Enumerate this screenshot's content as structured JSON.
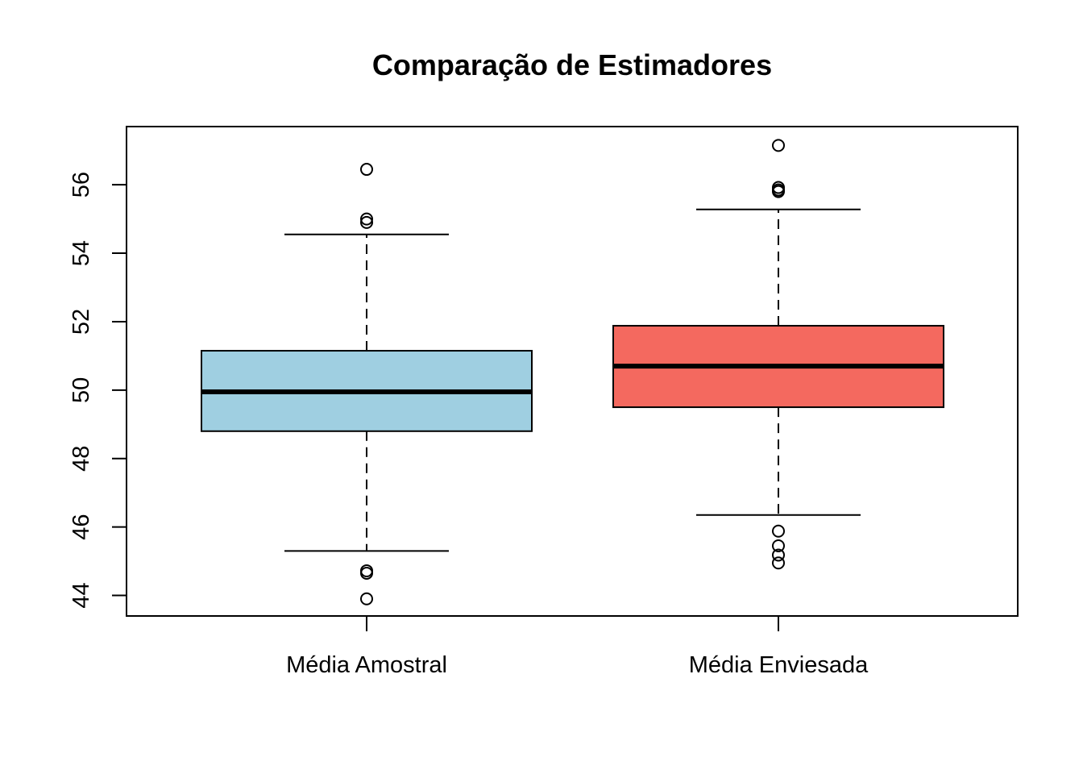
{
  "chart_data": {
    "type": "boxplot",
    "title": "Comparação de Estimadores",
    "xlabel": "",
    "ylabel": "",
    "ylim": [
      43.4,
      57.7
    ],
    "yticks": [
      44,
      46,
      48,
      50,
      52,
      54,
      56
    ],
    "grid": false,
    "series": [
      {
        "category": "Média Amostral",
        "color": "#9FCFE1",
        "whisker_low": 45.3,
        "q1": 48.8,
        "median": 49.95,
        "q3": 51.15,
        "whisker_high": 54.55,
        "outliers": [
          56.45,
          55.0,
          54.9,
          44.72,
          44.65,
          43.9
        ]
      },
      {
        "category": "Média Enviesada",
        "color": "#F4695F",
        "whisker_low": 46.35,
        "q1": 49.5,
        "median": 50.7,
        "q3": 51.88,
        "whisker_high": 55.28,
        "outliers": [
          57.15,
          55.92,
          55.85,
          55.8,
          45.88,
          45.45,
          45.18,
          44.95
        ]
      }
    ]
  }
}
